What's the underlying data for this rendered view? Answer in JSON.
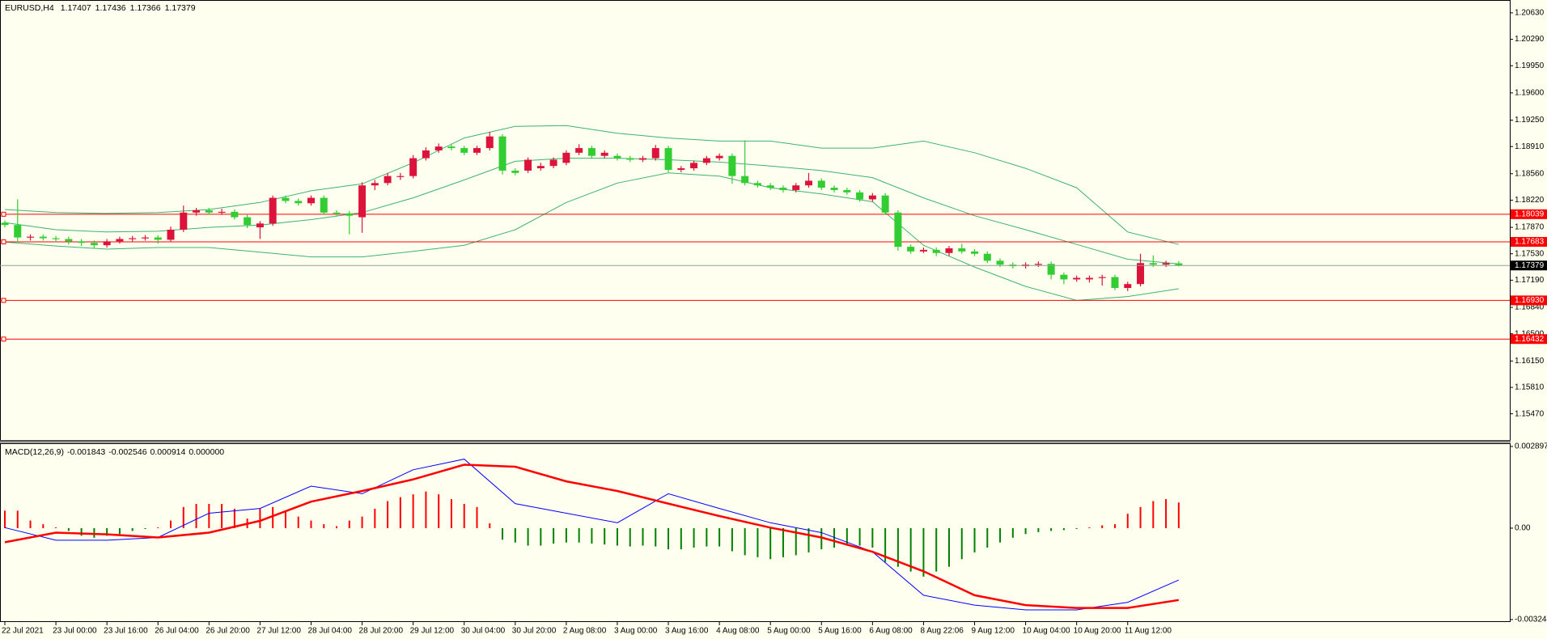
{
  "chart_data": [
    {
      "type": "candlestick",
      "title": "EURUSD,H4",
      "up_color": "#dc143c",
      "down_color": "#32cd32",
      "band_color": "#3cb371",
      "level_color": "#ff0000",
      "price_line_color": "#8fa38f",
      "categories": [
        "22 Jul 2021",
        null,
        null,
        null,
        "23 Jul 00:00",
        null,
        null,
        null,
        "23 Jul 16:00",
        null,
        null,
        null,
        "26 Jul 04:00",
        null,
        null,
        null,
        "26 Jul 20:00",
        null,
        null,
        null,
        "27 Jul 12:00",
        null,
        null,
        null,
        "28 Jul 04:00",
        null,
        null,
        null,
        "28 Jul 20:00",
        null,
        null,
        null,
        "29 Jul 12:00",
        null,
        null,
        null,
        "30 Jul 04:00",
        null,
        null,
        null,
        "30 Jul 20:00",
        null,
        null,
        null,
        "2 Aug 08:00",
        null,
        null,
        null,
        "3 Aug 00:00",
        null,
        null,
        null,
        "3 Aug 16:00",
        null,
        null,
        null,
        "4 Aug 08:00",
        null,
        null,
        null,
        "5 Aug 00:00",
        null,
        null,
        null,
        "5 Aug 16:00",
        null,
        null,
        null,
        "6 Aug 08:00",
        null,
        null,
        null,
        "8 Aug 22:06",
        null,
        null,
        null,
        "9 Aug 12:00",
        null,
        null,
        null,
        "10 Aug 04:00",
        null,
        null,
        null,
        "10 Aug 20:00",
        null,
        null,
        null,
        "11 Aug 12:00",
        null,
        null,
        null,
        null
      ],
      "candles": [
        [
          1.1793,
          1.1796,
          1.1787,
          1.179
        ],
        [
          1.179,
          1.1823,
          1.1768,
          1.1774
        ],
        [
          1.1774,
          1.1778,
          1.177,
          1.1775
        ],
        [
          1.1775,
          1.1778,
          1.177,
          1.1773
        ],
        [
          1.1773,
          1.1776,
          1.1768,
          1.1772
        ],
        [
          1.1772,
          1.1775,
          1.1765,
          1.1769
        ],
        [
          1.1769,
          1.1772,
          1.1763,
          1.1767
        ],
        [
          1.1767,
          1.177,
          1.176,
          1.1764
        ],
        [
          1.1764,
          1.1772,
          1.1761,
          1.1769
        ],
        [
          1.1769,
          1.1775,
          1.1766,
          1.1772
        ],
        [
          1.1772,
          1.1776,
          1.1769,
          1.1773
        ],
        [
          1.1773,
          1.1777,
          1.177,
          1.1774
        ],
        [
          1.1774,
          1.1777,
          1.1766,
          1.1771
        ],
        [
          1.1771,
          1.1788,
          1.1768,
          1.1784
        ],
        [
          1.1784,
          1.1815,
          1.1781,
          1.1806
        ],
        [
          1.1806,
          1.1812,
          1.1802,
          1.1809
        ],
        [
          1.1809,
          1.1812,
          1.1803,
          1.1806
        ],
        [
          1.1806,
          1.1811,
          1.1803,
          1.1807
        ],
        [
          1.1807,
          1.181,
          1.1797,
          1.18
        ],
        [
          1.18,
          1.1803,
          1.1786,
          1.179
        ],
        [
          1.1787,
          1.1795,
          1.1772,
          1.1792
        ],
        [
          1.1792,
          1.1828,
          1.1789,
          1.1825
        ],
        [
          1.1825,
          1.1828,
          1.1818,
          1.1821
        ],
        [
          1.1821,
          1.1824,
          1.1815,
          1.1818
        ],
        [
          1.1818,
          1.1828,
          1.1815,
          1.1825
        ],
        [
          1.1825,
          1.1828,
          1.1803,
          1.1806
        ],
        [
          1.1806,
          1.1809,
          1.1802,
          1.1805
        ],
        [
          1.1805,
          1.1808,
          1.1778,
          1.1802
        ],
        [
          1.18,
          1.1845,
          1.178,
          1.1841
        ],
        [
          1.1841,
          1.1848,
          1.1835,
          1.1844
        ],
        [
          1.1844,
          1.1857,
          1.1841,
          1.1853
        ],
        [
          1.1853,
          1.1857,
          1.1848,
          1.1853
        ],
        [
          1.1853,
          1.188,
          1.185,
          1.1876
        ],
        [
          1.1876,
          1.189,
          1.1873,
          1.1886
        ],
        [
          1.1886,
          1.1895,
          1.1883,
          1.1891
        ],
        [
          1.1891,
          1.1894,
          1.1886,
          1.1889
        ],
        [
          1.1889,
          1.1892,
          1.188,
          1.1883
        ],
        [
          1.1883,
          1.1892,
          1.188,
          1.1889
        ],
        [
          1.1889,
          1.191,
          1.1886,
          1.1904
        ],
        [
          1.1904,
          1.1907,
          1.1855,
          1.186
        ],
        [
          1.186,
          1.1863,
          1.1854,
          1.1857
        ],
        [
          1.186,
          1.1877,
          1.1857,
          1.1874
        ],
        [
          1.1863,
          1.187,
          1.186,
          1.1866
        ],
        [
          1.1866,
          1.1877,
          1.1863,
          1.1874
        ],
        [
          1.187,
          1.1886,
          1.1867,
          1.1883
        ],
        [
          1.1883,
          1.1894,
          1.188,
          1.1889
        ],
        [
          1.1889,
          1.1892,
          1.1876,
          1.1879
        ],
        [
          1.1879,
          1.1886,
          1.1876,
          1.1883
        ],
        [
          1.1879,
          1.1882,
          1.1873,
          1.1876
        ],
        [
          1.1876,
          1.1879,
          1.1871,
          1.1874
        ],
        [
          1.1874,
          1.1879,
          1.1871,
          1.1876
        ],
        [
          1.1876,
          1.1893,
          1.1873,
          1.1889
        ],
        [
          1.1889,
          1.1892,
          1.1858,
          1.1861
        ],
        [
          1.1861,
          1.1866,
          1.1858,
          1.1863
        ],
        [
          1.1863,
          1.1873,
          1.186,
          1.187
        ],
        [
          1.187,
          1.1879,
          1.1867,
          1.1876
        ],
        [
          1.1876,
          1.1882,
          1.1873,
          1.1879
        ],
        [
          1.1879,
          1.1882,
          1.1843,
          1.1853
        ],
        [
          1.1853,
          1.1899,
          1.1841,
          1.1844
        ],
        [
          1.1844,
          1.1847,
          1.1838,
          1.1841
        ],
        [
          1.1841,
          1.1844,
          1.1835,
          1.1838
        ],
        [
          1.1838,
          1.1841,
          1.1832,
          1.1835
        ],
        [
          1.1835,
          1.1844,
          1.1832,
          1.1841
        ],
        [
          1.1841,
          1.1857,
          1.1838,
          1.1847
        ],
        [
          1.1847,
          1.185,
          1.1835,
          1.1838
        ],
        [
          1.1838,
          1.1841,
          1.1832,
          1.1835
        ],
        [
          1.1835,
          1.1838,
          1.1829,
          1.1832
        ],
        [
          1.1832,
          1.1835,
          1.182,
          1.1823
        ],
        [
          1.1823,
          1.1831,
          1.182,
          1.1828
        ],
        [
          1.1828,
          1.1831,
          1.1803,
          1.1806
        ],
        [
          1.1806,
          1.1809,
          1.1757,
          1.1762
        ],
        [
          1.1762,
          1.1765,
          1.1753,
          1.1756
        ],
        [
          1.1756,
          1.1761,
          1.1754,
          1.1758
        ],
        [
          1.1758,
          1.1761,
          1.175,
          1.1754
        ],
        [
          1.1754,
          1.1763,
          1.175,
          1.176
        ],
        [
          1.176,
          1.1766,
          1.1753,
          1.1756
        ],
        [
          1.1756,
          1.1759,
          1.175,
          1.1753
        ],
        [
          1.1753,
          1.1756,
          1.1741,
          1.1744
        ],
        [
          1.1744,
          1.1747,
          1.1736,
          1.1739
        ],
        [
          1.1739,
          1.1742,
          1.1734,
          1.1737
        ],
        [
          1.1737,
          1.1742,
          1.1734,
          1.1739
        ],
        [
          1.1739,
          1.1743,
          1.1736,
          1.174
        ],
        [
          1.174,
          1.1743,
          1.172,
          1.1726
        ],
        [
          1.1726,
          1.1729,
          1.1714,
          1.172
        ],
        [
          1.172,
          1.1725,
          1.1717,
          1.1722
        ],
        [
          1.172,
          1.1725,
          1.1716,
          1.1722
        ],
        [
          1.1722,
          1.1726,
          1.1712,
          1.1723
        ],
        [
          1.1723,
          1.1726,
          1.1706,
          1.1709
        ],
        [
          1.1709,
          1.1717,
          1.1705,
          1.1714
        ],
        [
          1.1714,
          1.1753,
          1.1711,
          1.1741
        ],
        [
          1.1741,
          1.1751,
          1.1736,
          1.1739
        ],
        [
          1.1739,
          1.1744,
          1.1736,
          1.1741
        ],
        [
          1.17407,
          1.17436,
          1.17366,
          1.17379
        ]
      ],
      "bands": {
        "x": [
          0,
          4,
          8,
          12,
          16,
          20,
          24,
          28,
          32,
          36,
          40,
          44,
          48,
          52,
          56,
          60,
          64,
          68,
          72,
          76,
          80,
          84,
          88,
          92
        ],
        "upper": [
          1.181,
          1.1806,
          1.1805,
          1.1806,
          1.181,
          1.1819,
          1.1834,
          1.1843,
          1.187,
          1.1902,
          1.1917,
          1.1918,
          1.1908,
          1.1902,
          1.1898,
          1.1898,
          1.1889,
          1.1889,
          1.1898,
          1.1883,
          1.1863,
          1.1838,
          1.1781,
          1.1765
        ],
        "middle": [
          1.1793,
          1.1784,
          1.1781,
          1.1782,
          1.1787,
          1.179,
          1.1797,
          1.1806,
          1.1825,
          1.1848,
          1.1872,
          1.1876,
          1.1876,
          1.1874,
          1.1871,
          1.1866,
          1.186,
          1.1851,
          1.1825,
          1.1802,
          1.1784,
          1.1765,
          1.1746,
          1.174
        ],
        "lower": [
          1.1768,
          1.1763,
          1.1759,
          1.1761,
          1.1761,
          1.1755,
          1.1749,
          1.1749,
          1.1756,
          1.1764,
          1.1784,
          1.1819,
          1.1844,
          1.1857,
          1.1853,
          1.1838,
          1.183,
          1.182,
          1.1764,
          1.1736,
          1.1711,
          1.1693,
          1.1698,
          1.1708
        ]
      },
      "levels": [
        {
          "value": 1.18039,
          "label": "1.18039"
        },
        {
          "value": 1.17683,
          "label": "1.17683"
        },
        {
          "value": 1.1693,
          "label": "1.16930"
        },
        {
          "value": 1.16432,
          "label": "1.16432"
        }
      ],
      "ylim": [
        1.15133,
        1.20775
      ],
      "yticks": [
        {
          "value": 1.2063,
          "label": "1.20630"
        },
        {
          "value": 1.2029,
          "label": "1.20290"
        },
        {
          "value": 1.1995,
          "label": "1.19950"
        },
        {
          "value": 1.196,
          "label": "1.19600"
        },
        {
          "value": 1.1925,
          "label": "1.19250"
        },
        {
          "value": 1.1891,
          "label": "1.18910"
        },
        {
          "value": 1.1856,
          "label": "1.18560"
        },
        {
          "value": 1.1822,
          "label": "1.18220"
        },
        {
          "value": 1.1787,
          "label": "1.17870"
        },
        {
          "value": 1.1753,
          "label": "1.17530"
        },
        {
          "value": 1.1719,
          "label": "1.17190"
        },
        {
          "value": 1.1684,
          "label": "1.16840"
        },
        {
          "value": 1.165,
          "label": "1.16500"
        },
        {
          "value": 1.1615,
          "label": "1.16150"
        },
        {
          "value": 1.1581,
          "label": "1.15810"
        },
        {
          "value": 1.1547,
          "label": "1.15470"
        }
      ]
    },
    {
      "type": "macd",
      "title": "MACD(12,26,9)",
      "readout": [
        -0.001843,
        -0.002546,
        0.000914,
        {
          "value": 0,
          "label": "0.000000"
        }
      ],
      "pos_color": "#ff0000",
      "neg_color": "#008000",
      "histogram": [
        0.00062,
        0.00062,
        0.00027,
        0.00014,
        3e-05,
        -0.0001,
        -0.00027,
        -0.00034,
        -0.00027,
        -0.00021,
        -0.0001,
        -3e-05,
        3e-05,
        0.00027,
        0.00075,
        0.00086,
        0.00086,
        0.00086,
        0.00069,
        0.00034,
        0.00069,
        0.00075,
        0.00062,
        0.00041,
        0.00027,
        0.00014,
        7e-05,
        0.00027,
        0.00041,
        0.00069,
        0.00096,
        0.0011,
        0.0012,
        0.0013,
        0.0012,
        0.00103,
        0.00086,
        0.00075,
        0.00017,
        -0.00041,
        -0.00051,
        -0.00062,
        -0.00062,
        -0.00055,
        -0.00051,
        -0.00051,
        -0.00055,
        -0.00058,
        -0.00062,
        -0.00065,
        -0.00062,
        -0.00065,
        -0.00075,
        -0.00075,
        -0.00069,
        -0.00065,
        -0.00065,
        -0.00082,
        -0.00096,
        -0.00103,
        -0.0011,
        -0.00103,
        -0.00096,
        -0.00086,
        -0.00075,
        -0.00069,
        -0.00062,
        -0.00062,
        -0.00069,
        -0.0012,
        -0.00137,
        -0.00154,
        -0.00172,
        -0.00154,
        -0.00137,
        -0.0011,
        -0.00086,
        -0.00069,
        -0.00051,
        -0.00034,
        -0.00021,
        -0.00014,
        -0.0001,
        -7e-05,
        -3e-05,
        3e-05,
        0.0001,
        0.00014,
        0.00051,
        0.00075,
        0.00096,
        0.00103,
        0.00091
      ],
      "series": [
        {
          "color": "#0000ff",
          "width": 1,
          "x": [
            0,
            4,
            8,
            12,
            16,
            20,
            24,
            28,
            32,
            36,
            40,
            44,
            48,
            52,
            56,
            60,
            64,
            68,
            72,
            76,
            80,
            84,
            88,
            92
          ],
          "values": [
            2e-05,
            -0.00043,
            -0.00043,
            -0.00033,
            0.00053,
            0.0007,
            0.00149,
            0.00122,
            0.00207,
            0.00245,
            0.00087,
            0.00053,
            0.00019,
            0.00122,
            0.0007,
            0.00019,
            -0.00016,
            -0.00084,
            -0.00238,
            -0.00273,
            -0.0029,
            -0.0029,
            -0.00263,
            -0.00184
          ]
        },
        {
          "color": "#ff0000",
          "width": 2.5,
          "x": [
            0,
            4,
            8,
            12,
            16,
            20,
            24,
            28,
            32,
            36,
            40,
            44,
            48,
            52,
            56,
            60,
            64,
            68,
            72,
            76,
            80,
            84,
            88,
            92
          ],
          "values": [
            -0.0005,
            -0.00016,
            -0.00022,
            -0.00033,
            -0.00016,
            0.00026,
            0.00094,
            0.00132,
            0.00173,
            0.00225,
            0.00218,
            0.00166,
            0.00132,
            0.00087,
            0.00043,
            2e-05,
            -0.00033,
            -0.00084,
            -0.00153,
            -0.00238,
            -0.00273,
            -0.00283,
            -0.00283,
            -0.00255
          ]
        }
      ],
      "ylim": [
        -0.003244,
        0.002897
      ],
      "yticks": [
        0.002897,
        {
          "value": 0,
          "label": "0.00"
        },
        -0.003244
      ]
    }
  ]
}
